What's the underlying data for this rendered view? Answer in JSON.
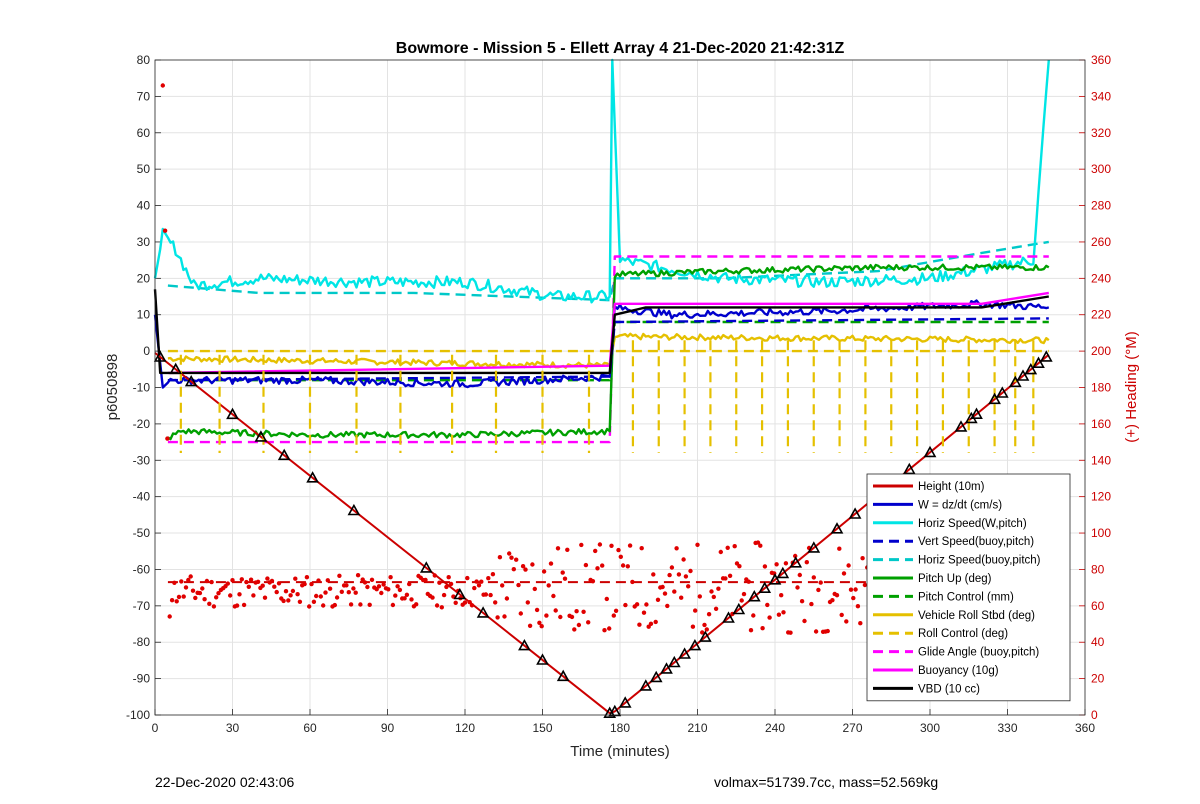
{
  "footer": {
    "timestamp": "22-Dec-2020 02:43:06",
    "vol_mass": "volmax=51739.7cc, mass=52.569kg"
  },
  "chart_data": {
    "type": "line",
    "title": "Bowmore - Mission 5 - Ellett Array 4 21-Dec-2020 21:42:31Z",
    "xlabel": "Time (minutes)",
    "ylabel": "p6050898",
    "y2label": "(+) Heading (°M)",
    "xlim": [
      0,
      360
    ],
    "ylim": [
      -100,
      80
    ],
    "y2lim": [
      0,
      360
    ],
    "xticks": [
      0,
      30,
      60,
      90,
      120,
      150,
      180,
      210,
      240,
      270,
      300,
      330,
      360
    ],
    "yticks": [
      -100,
      -90,
      -80,
      -70,
      -60,
      -50,
      -40,
      -30,
      -20,
      -10,
      0,
      10,
      20,
      30,
      40,
      50,
      60,
      70,
      80
    ],
    "y2ticks": [
      0,
      20,
      40,
      60,
      80,
      100,
      120,
      140,
      160,
      180,
      200,
      220,
      240,
      260,
      280,
      300,
      320,
      340,
      360
    ],
    "grid": true,
    "legend_position": "bottom-right",
    "series": [
      {
        "name": "Height (10m)",
        "color": "#cc0000",
        "style": "solid",
        "x": [
          0,
          176,
          178,
          346
        ],
        "y": [
          -0.5,
          -99.5,
          -99,
          -1
        ]
      },
      {
        "name": "W = dz/dt (cm/s)",
        "color": "#0000cc",
        "style": "solid",
        "x": [
          0,
          3,
          6,
          60,
          120,
          176,
          178,
          200,
          260,
          320,
          346
        ],
        "y": [
          10,
          -10,
          -8,
          -8,
          -9,
          -7,
          12,
          10,
          11,
          13,
          12
        ]
      },
      {
        "name": "Horiz Speed(W,pitch)",
        "color": "#00e5e5",
        "style": "solid",
        "x": [
          0,
          3,
          8,
          15,
          40,
          80,
          120,
          155,
          176,
          177,
          180,
          220,
          260,
          300,
          340,
          346
        ],
        "y": [
          20,
          32,
          28,
          18,
          20,
          19,
          19,
          15,
          15,
          80,
          25,
          20,
          19,
          20,
          25,
          80
        ]
      },
      {
        "name": "Vert Speed(buoy,pitch)",
        "color": "#0000cc",
        "style": "dashed",
        "x": [
          5,
          176,
          178,
          346
        ],
        "y": [
          -8,
          -7,
          8,
          9
        ]
      },
      {
        "name": "Horiz Speed(buoy,pitch)",
        "color": "#00c8c8",
        "style": "dashed",
        "x": [
          5,
          40,
          100,
          176,
          178,
          220,
          280,
          320,
          346
        ],
        "y": [
          18,
          16,
          16,
          14,
          20,
          20,
          22,
          27,
          30
        ]
      },
      {
        "name": "Pitch Up (deg)",
        "color": "#00a000",
        "style": "solid",
        "x": [
          5,
          10,
          60,
          120,
          176,
          178,
          220,
          280,
          346
        ],
        "y": [
          -24,
          -22,
          -23,
          -23,
          -22,
          21,
          22,
          23,
          23
        ]
      },
      {
        "name": "Pitch Control (mm)",
        "color": "#00a000",
        "style": "dashed",
        "x": [
          5,
          176,
          178,
          346
        ],
        "y": [
          -8,
          -8,
          8,
          8
        ]
      },
      {
        "name": "Vehicle Roll Stbd (deg)",
        "color": "#e5c000",
        "style": "solid",
        "x": [
          5,
          176,
          178,
          346
        ],
        "y": [
          -2,
          -4,
          4,
          3
        ]
      },
      {
        "name": "Roll Control (deg)",
        "color": "#e5c000",
        "style": "dashed",
        "x": [
          5,
          176,
          178,
          346
        ],
        "y": [
          0,
          0,
          0,
          0
        ]
      },
      {
        "name": "Glide Angle (buoy,pitch)",
        "color": "#ff00ff",
        "style": "dashed",
        "x": [
          5,
          176,
          178,
          346
        ],
        "y": [
          -25,
          -25,
          26,
          26
        ]
      },
      {
        "name": "Buoyancy (10g)",
        "color": "#ff00ff",
        "style": "solid",
        "x": [
          5,
          176,
          178,
          320,
          346
        ],
        "y": [
          -6,
          -4,
          13,
          13,
          16
        ]
      },
      {
        "name": "VBD (10 cc)",
        "color": "#000000",
        "style": "solid",
        "x": [
          0,
          2,
          176,
          178,
          190,
          240,
          320,
          346
        ],
        "y": [
          17,
          -6,
          -6,
          10,
          12,
          12,
          12,
          15
        ]
      }
    ],
    "heading_dashed_level": 73
  }
}
